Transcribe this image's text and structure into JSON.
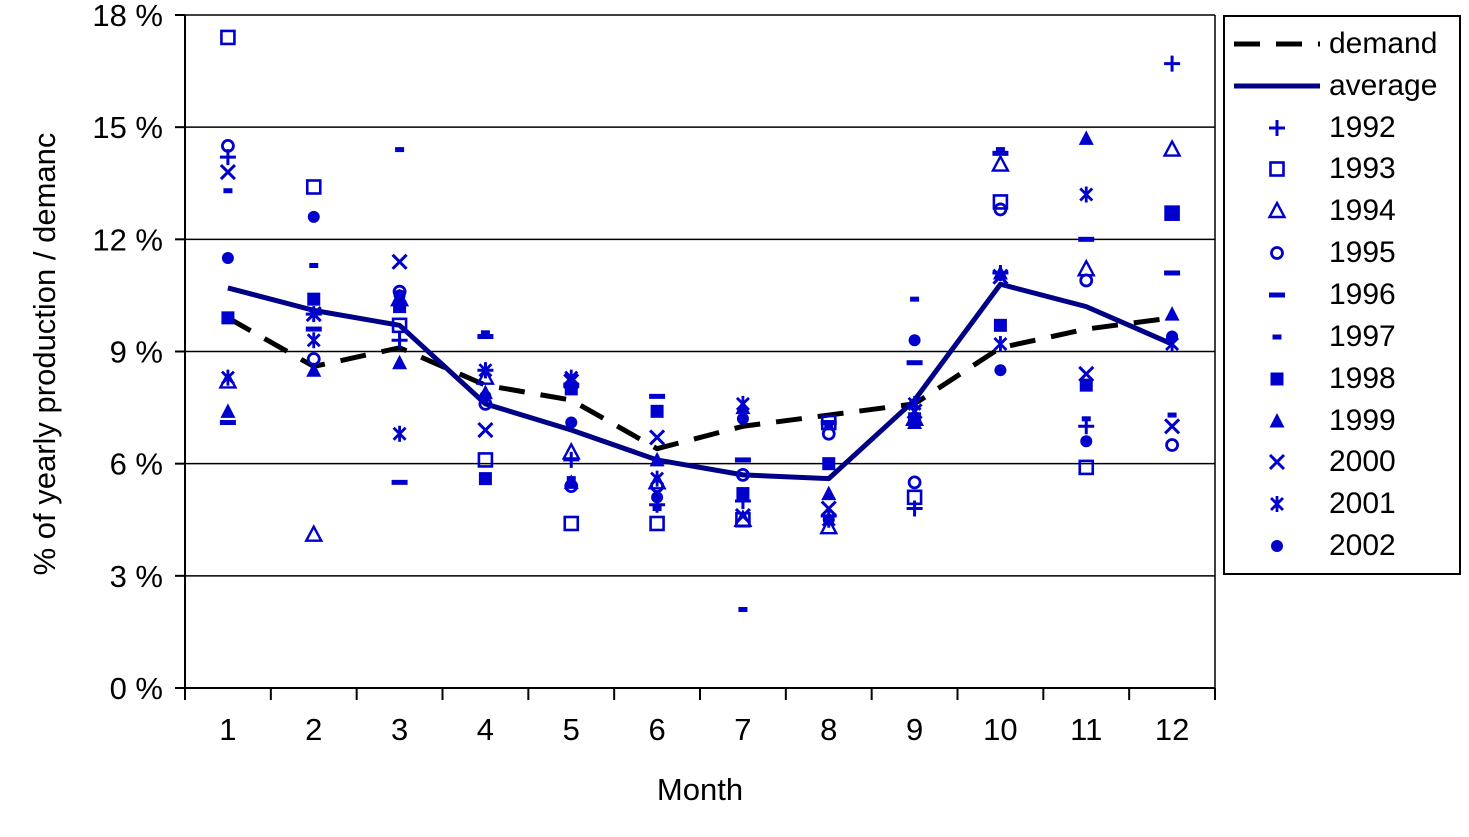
{
  "chart_data": {
    "type": "scatter",
    "title": "",
    "xlabel": "Month",
    "ylabel": "% of yearly production / demanc",
    "x_categories": [
      "1",
      "2",
      "3",
      "4",
      "5",
      "6",
      "7",
      "8",
      "9",
      "10",
      "11",
      "12"
    ],
    "ylim": [
      0,
      18
    ],
    "yticks": [
      0,
      3,
      6,
      9,
      12,
      15,
      18
    ],
    "ytick_labels": [
      "0 %",
      "3 %",
      "6 %",
      "9 %",
      "12 %",
      "15 %",
      "18 %"
    ],
    "grid": "horizontal",
    "legend_position": "right",
    "colors": {
      "marker_blue": "#0000CC",
      "average_line": "#000087",
      "demand_line": "#000000",
      "grid_line": "#000000",
      "background": "#ffffff"
    },
    "series": [
      {
        "name": "demand",
        "style": "dashed-line",
        "color": "#000000",
        "values": [
          9.9,
          8.6,
          9.1,
          8.1,
          7.7,
          6.4,
          7.0,
          7.3,
          7.6,
          9.1,
          9.6,
          9.9
        ]
      },
      {
        "name": "average",
        "style": "solid-line",
        "color": "#000087",
        "values": [
          10.7,
          10.1,
          9.7,
          7.6,
          6.9,
          6.1,
          5.7,
          5.6,
          7.7,
          10.8,
          10.2,
          9.2
        ]
      },
      {
        "name": "1992",
        "style": "marker",
        "marker": "plus",
        "color": "#0000CC",
        "values": [
          14.2,
          10.0,
          9.3,
          8.5,
          6.1,
          4.9,
          5.0,
          4.6,
          4.8,
          11.1,
          7.0,
          16.7
        ]
      },
      {
        "name": "1993",
        "style": "marker",
        "marker": "square-open",
        "color": "#0000CC",
        "values": [
          17.4,
          13.4,
          9.7,
          6.1,
          4.4,
          4.4,
          4.5,
          7.1,
          5.1,
          13.0,
          5.9,
          12.7
        ]
      },
      {
        "name": "1994",
        "style": "marker",
        "marker": "triangle-open",
        "color": "#0000CC",
        "values": [
          8.2,
          4.1,
          10.4,
          8.3,
          6.3,
          5.5,
          4.5,
          4.3,
          7.2,
          14.0,
          11.2,
          14.4
        ]
      },
      {
        "name": "1995",
        "style": "marker",
        "marker": "circle-open",
        "color": "#0000CC",
        "values": [
          14.5,
          8.8,
          10.6,
          7.6,
          5.4,
          5.4,
          5.7,
          6.8,
          5.5,
          12.8,
          10.9,
          6.5
        ]
      },
      {
        "name": "1996",
        "style": "marker",
        "marker": "dash-long",
        "color": "#0000CC",
        "values": [
          7.1,
          9.6,
          5.5,
          9.4,
          8.1,
          7.8,
          6.1,
          7.1,
          8.7,
          14.3,
          12.0,
          11.1
        ]
      },
      {
        "name": "1997",
        "style": "marker",
        "marker": "dash-short",
        "color": "#0000CC",
        "values": [
          13.3,
          11.3,
          14.4,
          9.5,
          5.6,
          4.8,
          2.1,
          7.0,
          10.4,
          14.4,
          7.2,
          7.3
        ]
      },
      {
        "name": "1998",
        "style": "marker",
        "marker": "square-filled",
        "color": "#0000CC",
        "values": [
          9.9,
          10.4,
          10.2,
          5.6,
          8.0,
          7.4,
          5.2,
          6.0,
          7.2,
          9.7,
          8.1,
          12.7
        ]
      },
      {
        "name": "1999",
        "style": "marker",
        "marker": "triangle-filled",
        "color": "#0000CC",
        "values": [
          7.4,
          8.5,
          8.7,
          7.9,
          5.5,
          6.1,
          7.5,
          5.2,
          7.1,
          11.1,
          14.7,
          10.0
        ]
      },
      {
        "name": "2000",
        "style": "marker",
        "marker": "x-cross",
        "color": "#0000CC",
        "values": [
          13.8,
          10.0,
          11.4,
          6.9,
          8.2,
          6.7,
          4.6,
          4.8,
          7.4,
          11.0,
          8.4,
          7.0
        ]
      },
      {
        "name": "2001",
        "style": "marker",
        "marker": "asterisk",
        "color": "#0000CC",
        "values": [
          8.3,
          9.3,
          6.8,
          8.5,
          8.3,
          5.6,
          7.6,
          4.5,
          7.6,
          9.2,
          13.2,
          9.2
        ]
      },
      {
        "name": "2002",
        "style": "marker",
        "marker": "circle-filled",
        "color": "#0000CC",
        "values": [
          11.5,
          12.6,
          10.5,
          7.8,
          7.1,
          5.1,
          7.2,
          4.5,
          9.3,
          8.5,
          6.6,
          9.4
        ]
      }
    ]
  }
}
